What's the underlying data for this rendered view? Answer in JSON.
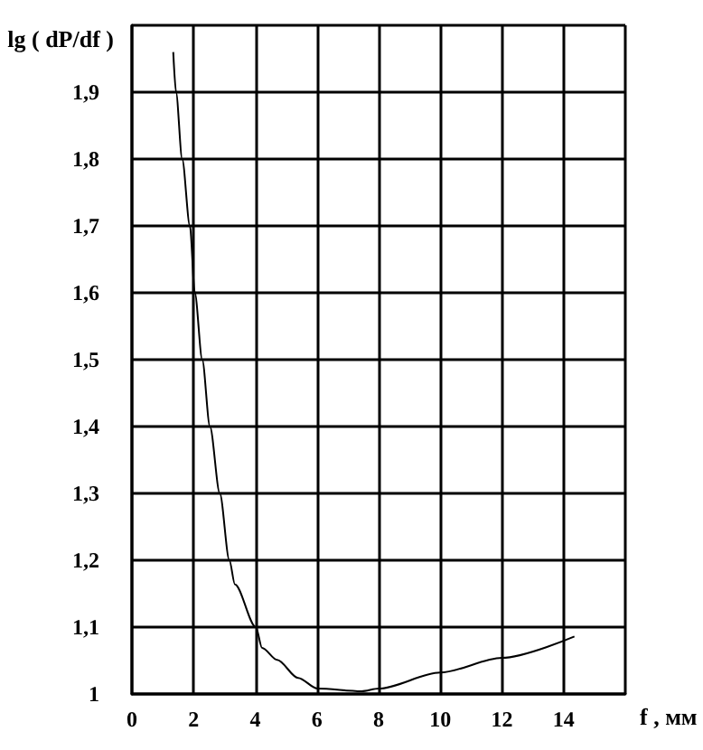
{
  "chart_data": {
    "type": "line",
    "xlabel": "f , мм",
    "ylabel": "lg ( dP/df )",
    "x": [
      1.34,
      1.43,
      1.63,
      1.88,
      2.04,
      2.28,
      2.53,
      2.85,
      3.16,
      3.34,
      4.02,
      4.22,
      4.71,
      5.39,
      6.02,
      7.45,
      8.0,
      10.0,
      12.0,
      14.35
    ],
    "series": [
      {
        "color": "#000000",
        "values": [
          1.96,
          1.9,
          1.8,
          1.7,
          1.6,
          1.5,
          1.4,
          1.3,
          1.2,
          1.164,
          1.1,
          1.069,
          1.051,
          1.024,
          1.008,
          1.004,
          1.008,
          1.032,
          1.054,
          1.086
        ]
      }
    ],
    "xlim": [
      0,
      16
    ],
    "xticks": [
      0,
      2,
      4,
      6,
      8,
      10,
      12,
      14,
      {
        "value": 16,
        "label": null
      }
    ],
    "ylim": [
      1,
      2
    ],
    "yticks": [
      1,
      {
        "value": 1.1,
        "label": "1,1"
      },
      {
        "value": 1.2,
        "label": "1,2"
      },
      {
        "value": 1.3,
        "label": "1,3"
      },
      {
        "value": 1.4,
        "label": "1,4"
      },
      {
        "value": 1.5,
        "label": "1,5"
      },
      {
        "value": 1.6,
        "label": "1,6"
      },
      {
        "value": 1.7,
        "label": "1,7"
      },
      {
        "value": 1.8,
        "label": "1,8"
      },
      {
        "value": 1.9,
        "label": "1,9"
      },
      {
        "value": 2,
        "label": null
      }
    ],
    "grid": true,
    "marker": "none",
    "line_style": "solid"
  }
}
